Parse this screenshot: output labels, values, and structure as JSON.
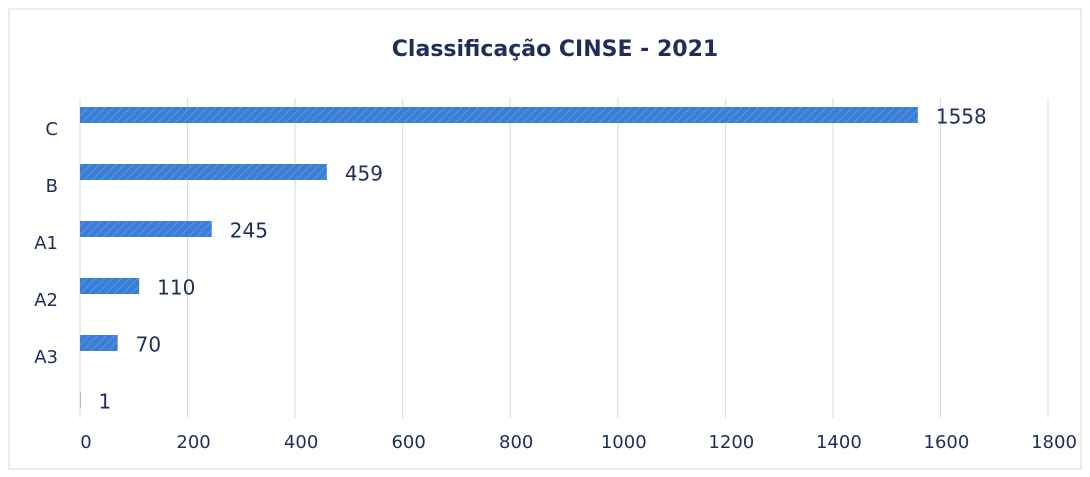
{
  "chart_data": {
    "type": "hbar",
    "title": "Classificação CINSE - 2021",
    "categories": [
      "C",
      "B",
      "A1",
      "A2",
      "A3",
      null
    ],
    "values": [
      1558,
      459,
      245,
      110,
      70,
      1
    ],
    "color": "#3a7fd5",
    "xlim": [
      0,
      1800
    ],
    "xticks": [
      0,
      200,
      400,
      600,
      800,
      1000,
      1200,
      1400,
      1600,
      1800
    ],
    "grid": true
  }
}
